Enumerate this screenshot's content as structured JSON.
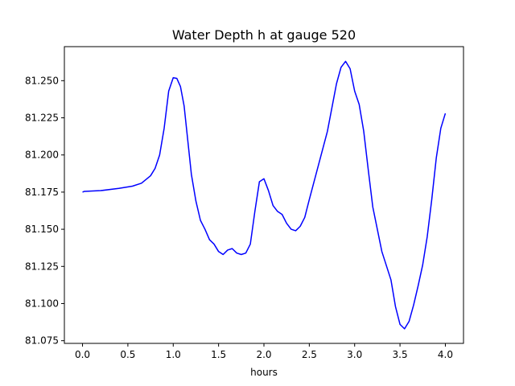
{
  "chart_data": {
    "type": "line",
    "title": "Water Depth h at gauge 520",
    "xlabel": "hours",
    "ylabel": "",
    "xlim": [
      -0.2,
      4.2
    ],
    "ylim": [
      81.0732,
      81.2729
    ],
    "grid": false,
    "x_ticks": [
      0.0,
      0.5,
      1.0,
      1.5,
      2.0,
      2.5,
      3.0,
      3.5,
      4.0
    ],
    "x_tick_labels": [
      "0.0",
      "0.5",
      "1.0",
      "1.5",
      "2.0",
      "2.5",
      "3.0",
      "3.5",
      "4.0"
    ],
    "y_ticks": [
      81.075,
      81.1,
      81.125,
      81.15,
      81.175,
      81.2,
      81.225,
      81.25
    ],
    "y_tick_labels": [
      "81.075",
      "81.100",
      "81.125",
      "81.150",
      "81.175",
      "81.200",
      "81.225",
      "81.250"
    ],
    "series": [
      {
        "name": "",
        "color": "#0000ff",
        "x": [
          0.0,
          0.02,
          0.2,
          0.4,
          0.55,
          0.65,
          0.75,
          0.8,
          0.85,
          0.9,
          0.95,
          1.0,
          1.04,
          1.08,
          1.12,
          1.16,
          1.2,
          1.25,
          1.3,
          1.35,
          1.4,
          1.45,
          1.5,
          1.55,
          1.6,
          1.65,
          1.7,
          1.75,
          1.8,
          1.85,
          1.9,
          1.95,
          2.0,
          2.05,
          2.1,
          2.15,
          2.2,
          2.25,
          2.3,
          2.35,
          2.4,
          2.45,
          2.5,
          2.6,
          2.7,
          2.8,
          2.85,
          2.9,
          2.95,
          3.0,
          3.05,
          3.1,
          3.15,
          3.2,
          3.3,
          3.4,
          3.45,
          3.5,
          3.55,
          3.6,
          3.65,
          3.7,
          3.75,
          3.8,
          3.85,
          3.9,
          3.95,
          4.0
        ],
        "y": [
          81.175,
          81.1755,
          81.176,
          81.1775,
          81.179,
          81.181,
          81.186,
          81.191,
          81.2,
          81.218,
          81.243,
          81.252,
          81.2515,
          81.246,
          81.233,
          81.21,
          81.187,
          81.169,
          81.156,
          81.15,
          81.143,
          81.14,
          81.135,
          81.133,
          81.136,
          81.137,
          81.134,
          81.133,
          81.134,
          81.14,
          81.162,
          81.182,
          81.184,
          81.176,
          81.166,
          81.162,
          81.16,
          81.154,
          81.15,
          81.149,
          81.152,
          81.158,
          81.17,
          81.193,
          81.216,
          81.248,
          81.259,
          81.263,
          81.258,
          81.243,
          81.234,
          81.216,
          81.19,
          81.165,
          81.135,
          81.116,
          81.098,
          81.086,
          81.083,
          81.088,
          81.099,
          81.112,
          81.126,
          81.145,
          81.17,
          81.198,
          81.218,
          81.228
        ]
      }
    ]
  }
}
